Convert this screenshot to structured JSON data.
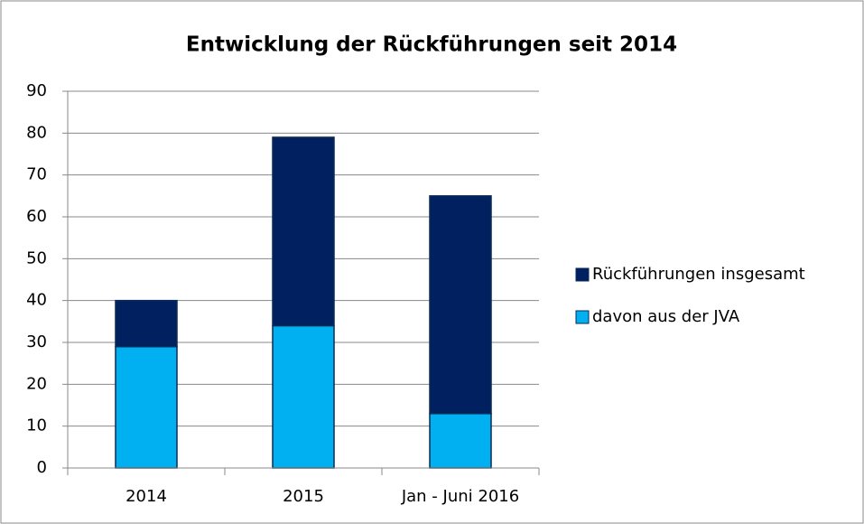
{
  "chart_data": {
    "type": "stacked_bar",
    "title": "Entwicklung der Rückführungen seit 2014",
    "categories": [
      "2014",
      "2015",
      "Jan - Juni 2016"
    ],
    "series": [
      {
        "name": "davon aus der JVA",
        "color": "#00b0f0",
        "values": [
          29,
          34,
          13
        ]
      },
      {
        "name": "Rückführungen insgesamt",
        "color": "#002060",
        "values": [
          11,
          45,
          52
        ]
      }
    ],
    "ylim": [
      0,
      90
    ],
    "yticks": [
      0,
      10,
      20,
      30,
      40,
      50,
      60,
      70,
      80,
      90
    ],
    "grid": true,
    "legend": "right"
  }
}
